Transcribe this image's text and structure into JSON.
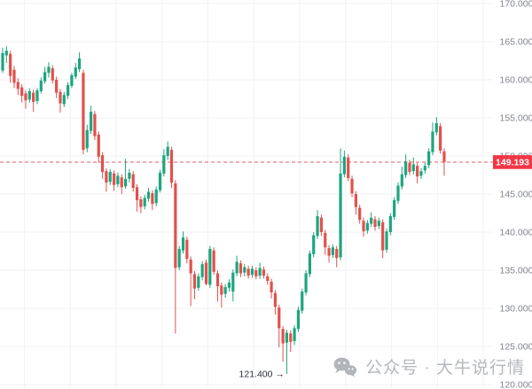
{
  "watermark": {
    "icon": "wechat-icon",
    "text": "公众号 · 大牛说行情"
  },
  "chart_data": {
    "type": "candlestick",
    "title": "",
    "xlabel": "",
    "ylabel": "",
    "grid": true,
    "legend_position": "none",
    "y_axis": {
      "min": 120,
      "max": 170,
      "tick_step": 5,
      "tick_labels": [
        "170.000",
        "165.000",
        "160.000",
        "155.000",
        "150.000",
        "145.000",
        "140.000",
        "135.000",
        "130.000",
        "125.000",
        "120.000"
      ]
    },
    "current_price": {
      "value": 149.193,
      "label": "149.193"
    },
    "annotation": {
      "text": "121.400 →",
      "price": 121.4,
      "candle_index": 74
    },
    "colors": {
      "up": "#1ea57e",
      "down": "#e1514d",
      "price_line": "#e05c64",
      "price_label_bg": "#f23645",
      "price_label_text": "#ffffff",
      "grid": "#f0f2f6",
      "axis_text": "#80838e",
      "annotation_text": "#2a2e39",
      "watermark": "#b2b5ba",
      "background": "#ffffff"
    },
    "candles": [
      [
        161.2,
        164.2,
        160.9,
        163.5
      ],
      [
        163.2,
        164.4,
        162.2,
        163.8
      ],
      [
        163.4,
        163.8,
        159.6,
        160.5
      ],
      [
        161.3,
        161.8,
        158.9,
        159.6
      ],
      [
        159.7,
        160.2,
        158.0,
        158.8
      ],
      [
        159.0,
        159.4,
        157.0,
        157.9
      ],
      [
        158.2,
        158.6,
        156.2,
        157.3
      ],
      [
        157.4,
        158.9,
        157.0,
        158.5
      ],
      [
        158.3,
        158.7,
        155.8,
        157.1
      ],
      [
        157.2,
        158.9,
        156.8,
        158.6
      ],
      [
        158.5,
        160.3,
        158.2,
        159.9
      ],
      [
        159.8,
        161.7,
        159.5,
        161.0
      ],
      [
        160.9,
        162.3,
        160.3,
        161.7
      ],
      [
        161.5,
        161.9,
        159.5,
        159.9
      ],
      [
        160.0,
        160.4,
        157.6,
        158.3
      ],
      [
        158.4,
        158.8,
        155.7,
        156.9
      ],
      [
        156.8,
        158.4,
        156.4,
        158.0
      ],
      [
        157.9,
        159.7,
        157.5,
        159.3
      ],
      [
        159.2,
        160.9,
        158.9,
        160.6
      ],
      [
        160.4,
        162.2,
        160.1,
        161.6
      ],
      [
        161.4,
        163.6,
        161.0,
        162.8
      ],
      [
        160.9,
        161.3,
        150.2,
        150.8
      ],
      [
        151.0,
        154.1,
        150.5,
        153.4
      ],
      [
        153.3,
        156.6,
        152.9,
        155.8
      ],
      [
        155.5,
        155.9,
        152.1,
        152.6
      ],
      [
        152.8,
        153.2,
        149.1,
        149.9
      ],
      [
        150.1,
        150.5,
        147.0,
        147.9
      ],
      [
        148.0,
        148.4,
        145.3,
        146.5
      ],
      [
        146.6,
        148.3,
        146.2,
        147.9
      ],
      [
        147.7,
        148.1,
        145.4,
        146.2
      ],
      [
        146.3,
        147.8,
        145.9,
        147.4
      ],
      [
        147.2,
        147.6,
        145.0,
        145.9
      ],
      [
        146.0,
        149.6,
        145.7,
        147.0
      ],
      [
        147.0,
        148.3,
        146.5,
        147.8
      ],
      [
        147.6,
        148.0,
        145.3,
        145.8
      ],
      [
        145.9,
        146.3,
        142.7,
        144.2
      ],
      [
        144.3,
        144.7,
        142.5,
        143.3
      ],
      [
        143.4,
        144.9,
        143.0,
        144.5
      ],
      [
        144.4,
        145.8,
        144.0,
        145.3
      ],
      [
        145.1,
        145.5,
        142.9,
        143.7
      ],
      [
        143.8,
        146.0,
        143.4,
        145.6
      ],
      [
        145.5,
        148.2,
        145.2,
        147.8
      ],
      [
        147.7,
        150.9,
        147.3,
        150.1
      ],
      [
        150.0,
        151.9,
        149.5,
        151.2
      ],
      [
        150.8,
        151.2,
        145.8,
        146.5
      ],
      [
        146.4,
        146.8,
        126.7,
        135.3
      ],
      [
        135.4,
        138.2,
        135.0,
        137.8
      ],
      [
        137.6,
        140.1,
        137.2,
        139.3
      ],
      [
        139.0,
        139.4,
        135.9,
        136.5
      ],
      [
        136.4,
        136.8,
        130.3,
        134.6
      ],
      [
        134.5,
        134.9,
        131.2,
        132.6
      ],
      [
        132.7,
        134.6,
        132.3,
        134.2
      ],
      [
        134.1,
        136.2,
        133.7,
        135.8
      ],
      [
        136.0,
        136.4,
        133.0,
        133.2
      ],
      [
        133.1,
        138.2,
        132.7,
        137.8
      ],
      [
        137.6,
        138.0,
        134.4,
        134.8
      ],
      [
        134.6,
        135.0,
        130.9,
        132.9
      ],
      [
        133.0,
        133.4,
        130.1,
        131.8
      ],
      [
        131.9,
        133.2,
        131.4,
        132.8
      ],
      [
        132.7,
        133.8,
        132.2,
        133.4
      ],
      [
        132.2,
        135.1,
        130.9,
        134.7
      ],
      [
        134.6,
        136.9,
        134.2,
        136.1
      ],
      [
        135.9,
        136.3,
        134.1,
        134.6
      ],
      [
        134.7,
        135.8,
        134.2,
        135.4
      ],
      [
        135.2,
        135.6,
        133.9,
        134.3
      ],
      [
        134.4,
        135.6,
        134.0,
        135.2
      ],
      [
        135.0,
        135.4,
        133.8,
        134.2
      ],
      [
        134.3,
        136.0,
        133.9,
        135.3
      ],
      [
        135.1,
        135.5,
        133.9,
        134.3
      ],
      [
        134.2,
        134.6,
        133.1,
        133.6
      ],
      [
        133.5,
        133.9,
        131.3,
        132.1
      ],
      [
        132.0,
        132.4,
        129.2,
        130.2
      ],
      [
        130.1,
        130.5,
        124.9,
        127.4
      ],
      [
        127.3,
        127.7,
        123.0,
        125.4
      ],
      [
        125.5,
        127.2,
        121.4,
        126.8
      ],
      [
        126.7,
        127.1,
        124.3,
        125.6
      ],
      [
        125.7,
        127.8,
        125.2,
        127.4
      ],
      [
        127.3,
        130.2,
        126.9,
        129.8
      ],
      [
        129.7,
        132.6,
        129.3,
        132.2
      ],
      [
        132.1,
        135.0,
        131.7,
        134.6
      ],
      [
        134.5,
        137.6,
        134.1,
        137.2
      ],
      [
        137.1,
        140.0,
        136.7,
        139.6
      ],
      [
        139.5,
        142.9,
        139.1,
        142.1
      ],
      [
        141.9,
        142.3,
        139.5,
        140.0
      ],
      [
        139.9,
        140.3,
        137.0,
        138.0
      ],
      [
        137.9,
        138.3,
        136.0,
        136.9
      ],
      [
        137.0,
        138.4,
        136.6,
        138.0
      ],
      [
        137.8,
        138.2,
        135.4,
        136.6
      ],
      [
        136.7,
        151.0,
        136.3,
        147.7
      ],
      [
        147.6,
        150.7,
        147.2,
        149.9
      ],
      [
        149.8,
        150.2,
        146.7,
        147.1
      ],
      [
        147.0,
        147.4,
        144.6,
        145.1
      ],
      [
        145.0,
        145.4,
        142.3,
        143.3
      ],
      [
        143.2,
        143.6,
        141.1,
        141.6
      ],
      [
        141.5,
        141.9,
        139.4,
        140.1
      ],
      [
        140.2,
        141.6,
        139.8,
        141.2
      ],
      [
        141.1,
        142.6,
        140.7,
        141.9
      ],
      [
        141.7,
        142.1,
        140.2,
        140.7
      ],
      [
        140.8,
        141.9,
        140.4,
        141.5
      ],
      [
        141.3,
        141.7,
        136.6,
        137.6
      ],
      [
        137.7,
        140.5,
        137.3,
        140.1
      ],
      [
        140.0,
        142.5,
        139.6,
        142.1
      ],
      [
        142.0,
        144.6,
        141.6,
        144.2
      ],
      [
        144.1,
        146.5,
        143.7,
        146.1
      ],
      [
        146.0,
        148.6,
        145.6,
        147.6
      ],
      [
        147.5,
        150.2,
        147.1,
        149.3
      ],
      [
        149.1,
        149.5,
        147.5,
        147.9
      ],
      [
        148.0,
        149.8,
        147.6,
        148.9
      ],
      [
        148.7,
        149.1,
        146.4,
        147.3
      ],
      [
        147.4,
        148.4,
        147.0,
        148.0
      ],
      [
        148.1,
        149.1,
        147.7,
        148.7
      ],
      [
        148.8,
        151.0,
        148.4,
        150.6
      ],
      [
        150.5,
        154.4,
        150.1,
        153.2
      ],
      [
        153.1,
        155.1,
        152.7,
        154.3
      ],
      [
        153.9,
        154.3,
        150.3,
        150.7
      ],
      [
        150.6,
        151.0,
        147.4,
        149.193
      ]
    ]
  }
}
